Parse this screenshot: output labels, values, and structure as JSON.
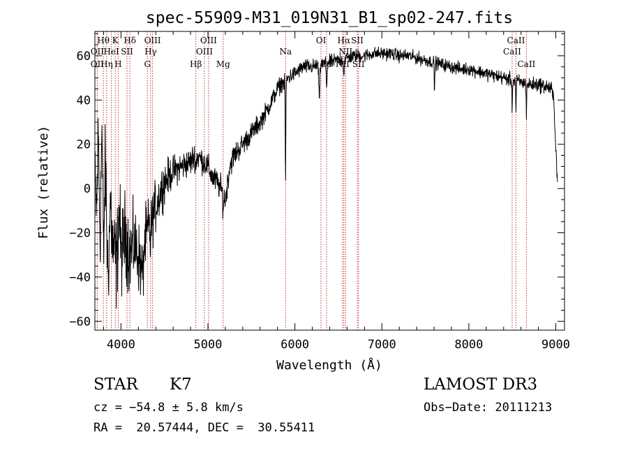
{
  "chart_data": {
    "type": "line",
    "title": "spec-55909-M31_019N31_B1_sp02-247.fits",
    "xlabel": "Wavelength (Å)",
    "ylabel": "Flux (relative)",
    "xlim": [
      3700,
      9100
    ],
    "ylim": [
      -64,
      71
    ],
    "xticks": [
      4000,
      5000,
      6000,
      7000,
      8000,
      9000
    ],
    "yticks": [
      -60,
      -40,
      -20,
      0,
      20,
      40,
      60
    ],
    "series": [
      {
        "name": "spectrum",
        "anchors": [
          [
            3700,
            2
          ],
          [
            3720,
            -10
          ],
          [
            3740,
            25
          ],
          [
            3760,
            -22
          ],
          [
            3780,
            28
          ],
          [
            3800,
            -30
          ],
          [
            3820,
            12
          ],
          [
            3850,
            -40
          ],
          [
            3880,
            -5
          ],
          [
            3900,
            -25
          ],
          [
            3950,
            -35
          ],
          [
            3980,
            -8
          ],
          [
            4000,
            -30
          ],
          [
            4050,
            -20
          ],
          [
            4100,
            -30
          ],
          [
            4150,
            -25
          ],
          [
            4200,
            -30
          ],
          [
            4250,
            -40
          ],
          [
            4270,
            -25
          ],
          [
            4300,
            -20
          ],
          [
            4350,
            -15
          ],
          [
            4400,
            -8
          ],
          [
            4450,
            -2
          ],
          [
            4500,
            3
          ],
          [
            4600,
            8
          ],
          [
            4700,
            10
          ],
          [
            4800,
            12
          ],
          [
            4850,
            15
          ],
          [
            4900,
            14
          ],
          [
            4950,
            12
          ],
          [
            5000,
            10
          ],
          [
            5050,
            5
          ],
          [
            5100,
            3
          ],
          [
            5150,
            0
          ],
          [
            5200,
            -5
          ],
          [
            5250,
            10
          ],
          [
            5300,
            15
          ],
          [
            5400,
            20
          ],
          [
            5500,
            25
          ],
          [
            5600,
            30
          ],
          [
            5700,
            37
          ],
          [
            5800,
            45
          ],
          [
            5850,
            48
          ],
          [
            5895,
            47
          ],
          [
            5920,
            50
          ],
          [
            6000,
            52
          ],
          [
            6100,
            55
          ],
          [
            6200,
            55
          ],
          [
            6300,
            56
          ],
          [
            6400,
            57
          ],
          [
            6500,
            58
          ],
          [
            6600,
            59
          ],
          [
            6700,
            60
          ],
          [
            6800,
            60
          ],
          [
            6900,
            61
          ],
          [
            7000,
            61
          ],
          [
            7100,
            61
          ],
          [
            7200,
            60
          ],
          [
            7300,
            60
          ],
          [
            7400,
            59
          ],
          [
            7500,
            58
          ],
          [
            7600,
            57
          ],
          [
            7700,
            56
          ],
          [
            7800,
            55
          ],
          [
            7900,
            54
          ],
          [
            8000,
            54
          ],
          [
            8100,
            53
          ],
          [
            8200,
            52
          ],
          [
            8300,
            51
          ],
          [
            8400,
            50
          ],
          [
            8500,
            49
          ],
          [
            8600,
            48
          ],
          [
            8700,
            47
          ],
          [
            8800,
            47
          ],
          [
            8900,
            46
          ],
          [
            8950,
            45
          ],
          [
            8975,
            40
          ],
          [
            9000,
            20
          ],
          [
            9020,
            1
          ]
        ],
        "noise": [
          [
            3700,
            17
          ],
          [
            3900,
            19
          ],
          [
            4100,
            16
          ],
          [
            4300,
            12
          ],
          [
            4600,
            6
          ],
          [
            5000,
            5
          ],
          [
            5200,
            5
          ],
          [
            5500,
            4
          ],
          [
            6000,
            3
          ],
          [
            7000,
            2.5
          ],
          [
            8000,
            2.5
          ],
          [
            9000,
            3
          ]
        ],
        "absorption": [
          [
            5892,
            45,
            3
          ],
          [
            6280,
            15,
            6
          ],
          [
            6365,
            10,
            5
          ],
          [
            6563,
            6,
            6
          ],
          [
            7605,
            15,
            3
          ],
          [
            8498,
            14,
            3
          ],
          [
            8542,
            14,
            3
          ],
          [
            8662,
            14,
            3
          ],
          [
            4340,
            10,
            5
          ],
          [
            4861,
            6,
            5
          ],
          [
            5175,
            6,
            6
          ]
        ]
      }
    ],
    "spectral_lines": [
      {
        "label": "Hθ",
        "x": 3797,
        "row": 0
      },
      {
        "label": "OII",
        "x": 3727,
        "row": 1
      },
      {
        "label": "OII",
        "x": 3727,
        "row": 2
      },
      {
        "label": "Hη",
        "x": 3835,
        "row": 2
      },
      {
        "label": "K",
        "x": 3934,
        "row": 0
      },
      {
        "label": "HeI",
        "x": 3889,
        "row": 1
      },
      {
        "label": "SII",
        "x": 4069,
        "row": 1
      },
      {
        "label": "H",
        "x": 3968,
        "row": 2
      },
      {
        "label": "Hδ",
        "x": 4102,
        "row": 0
      },
      {
        "label": "OIII",
        "x": 4363,
        "row": 0
      },
      {
        "label": "Hγ",
        "x": 4341,
        "row": 1
      },
      {
        "label": "G",
        "x": 4304,
        "row": 2
      },
      {
        "label": "Hβ",
        "x": 4861,
        "row": 2
      },
      {
        "label": "OIII",
        "x": 5007,
        "row": 0
      },
      {
        "label": "OIII",
        "x": 4959,
        "row": 1
      },
      {
        "label": "Mg",
        "x": 5175,
        "row": 2
      },
      {
        "label": "Na",
        "x": 5893,
        "row": 1
      },
      {
        "label": "OI",
        "x": 6300,
        "row": 0
      },
      {
        "label": "OI",
        "x": 6364,
        "row": 2
      },
      {
        "label": "Hα",
        "x": 6563,
        "row": 0
      },
      {
        "label": "NII",
        "x": 6583,
        "row": 1
      },
      {
        "label": "NII",
        "x": 6548,
        "row": 2
      },
      {
        "label": "SII",
        "x": 6717,
        "row": 0
      },
      {
        "label": "SII",
        "x": 6731,
        "row": 2
      },
      {
        "label": "CaII",
        "x": 8542,
        "row": 0
      },
      {
        "label": "CaII",
        "x": 8498,
        "row": 1
      },
      {
        "label": "CaII",
        "x": 8662,
        "row": 2
      }
    ]
  },
  "info": {
    "object_class": "STAR",
    "subclass": "K7",
    "survey": "LAMOST DR3",
    "redshift": "cz = −54.8 ± 5.8 km/s",
    "obs_date": "Obs−Date: 20111213",
    "coords": "RA =  20.57444, DEC =  30.55411"
  }
}
